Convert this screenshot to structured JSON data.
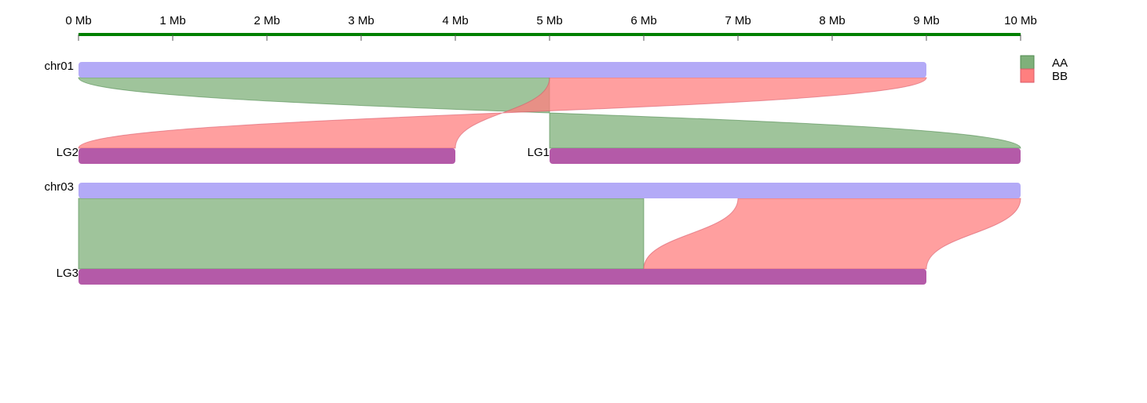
{
  "scale": {
    "axis_color": "#008000",
    "tick_labels": [
      "0 Mb",
      "1 Mb",
      "2 Mb",
      "3 Mb",
      "4 Mb",
      "5 Mb",
      "6 Mb",
      "7 Mb",
      "8 Mb",
      "9 Mb",
      "10 Mb"
    ]
  },
  "colors": {
    "reference": "#b3aaf7",
    "query": "#b45aa8",
    "AA": "#7fb07a",
    "BB": "#ff7f7f"
  },
  "legend": [
    {
      "label": "AA",
      "color": "#7fb07a",
      "stroke": "#4f8a4f"
    },
    {
      "label": "BB",
      "color": "#ff7f7f",
      "stroke": "#d85a6a"
    }
  ],
  "reference_chromosomes": [
    {
      "id": "chr01",
      "label": "chr01",
      "start_mb": 0,
      "end_mb": 9
    },
    {
      "id": "chr03",
      "label": "chr03",
      "start_mb": 0,
      "end_mb": 10
    }
  ],
  "linkage_groups": [
    {
      "id": "LG2",
      "label": "LG2",
      "start_mb": 0,
      "end_mb": 4
    },
    {
      "id": "LG1",
      "label": "LG1",
      "start_mb": 5,
      "end_mb": 10
    },
    {
      "id": "LG3",
      "label": "LG3",
      "start_mb": 0,
      "end_mb": 9
    }
  ],
  "links": [
    {
      "type": "AA",
      "ref": "chr01",
      "ref_start_mb": 0,
      "ref_end_mb": 5,
      "query": "LG1",
      "query_start_mb": 10,
      "query_end_mb": 5
    },
    {
      "type": "BB",
      "ref": "chr01",
      "ref_start_mb": 5,
      "ref_end_mb": 9,
      "query": "LG2",
      "query_start_mb": 4,
      "query_end_mb": 0
    },
    {
      "type": "AA",
      "ref": "chr03",
      "ref_start_mb": 0,
      "ref_end_mb": 6,
      "query": "LG3",
      "query_start_mb": 0,
      "query_end_mb": 6
    },
    {
      "type": "BB",
      "ref": "chr03",
      "ref_start_mb": 7,
      "ref_end_mb": 10,
      "query": "LG3",
      "query_start_mb": 6,
      "query_end_mb": 9
    }
  ]
}
